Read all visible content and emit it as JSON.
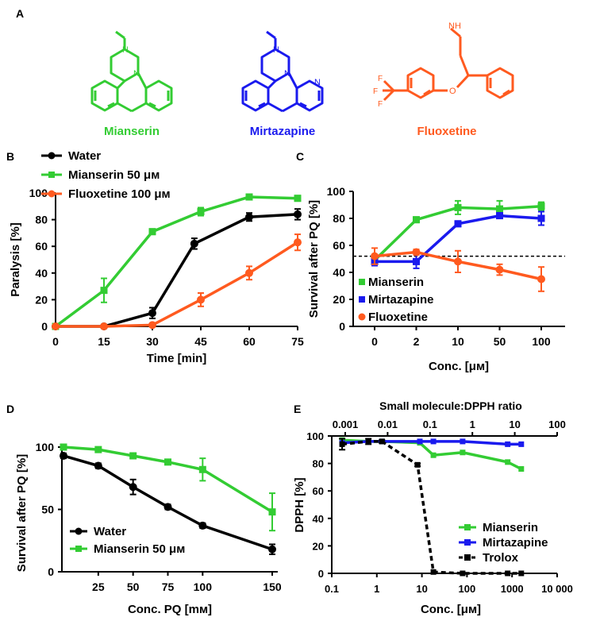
{
  "panel_letters": [
    "A",
    "B",
    "C",
    "D",
    "E"
  ],
  "structures": {
    "mianserin": {
      "name": "Mianserin",
      "color": "#33cc33"
    },
    "mirtazapine": {
      "name": "Mirtazapine",
      "color": "#1a1aee"
    },
    "fluoxetine": {
      "name": "Fluoxetine",
      "color": "#ff5a1f"
    },
    "atoms": {
      "N": "N",
      "O": "O",
      "NH": "NH",
      "F": "F"
    }
  },
  "chart_data": [
    {
      "panel": "B",
      "type": "line",
      "xlabel": "Time [min]",
      "ylabel": "Paralysis [%]",
      "xlim": [
        0,
        75
      ],
      "ylim": [
        0,
        100
      ],
      "xticks": [
        "0",
        "15",
        "30",
        "45",
        "60",
        "75"
      ],
      "yticks": [
        "0",
        "20",
        "40",
        "60",
        "80",
        "100"
      ],
      "legend_position": "top-left",
      "series": [
        {
          "name": "Water",
          "color": "#000000",
          "marker": "circle",
          "x": [
            0,
            15,
            30,
            43,
            60,
            75
          ],
          "y": [
            0,
            0,
            10,
            62,
            82,
            84
          ],
          "err": [
            0,
            0,
            4,
            4,
            3,
            4
          ]
        },
        {
          "name": "Mianserin 50 μм",
          "color": "#33cc33",
          "marker": "square",
          "x": [
            0,
            15,
            30,
            45,
            60,
            75
          ],
          "y": [
            0,
            27,
            71,
            86,
            97,
            96
          ],
          "err": [
            0,
            9,
            2,
            3,
            2,
            2
          ]
        },
        {
          "name": "Fluoxetine 100 μм",
          "color": "#ff5a1f",
          "marker": "circle",
          "x": [
            0,
            15,
            30,
            45,
            60,
            75
          ],
          "y": [
            0,
            0,
            1,
            20,
            40,
            63
          ],
          "err": [
            0,
            0,
            1,
            5,
            5,
            6
          ]
        }
      ]
    },
    {
      "panel": "C",
      "type": "line",
      "xlabel": "Conc. [μм]",
      "ylabel": "Survival after PQ  [%]",
      "categories": [
        "0",
        "2",
        "10",
        "50",
        "100"
      ],
      "ylim": [
        0,
        100
      ],
      "yticks": [
        "0",
        "20",
        "40",
        "60",
        "80",
        "100"
      ],
      "reference_line": 52,
      "legend_position": "bottom-left",
      "series": [
        {
          "name": "Mianserin",
          "color": "#33cc33",
          "marker": "square",
          "y": [
            49,
            79,
            88,
            87,
            89
          ],
          "err": [
            3,
            2,
            5,
            6,
            3
          ]
        },
        {
          "name": "Mirtazapine",
          "color": "#1a1aee",
          "marker": "square",
          "y": [
            48,
            48,
            76,
            82,
            80
          ],
          "err": [
            3,
            5,
            2,
            2,
            5
          ]
        },
        {
          "name": "Fluoxetine",
          "color": "#ff5a1f",
          "marker": "circle",
          "y": [
            52,
            55,
            48,
            42,
            35
          ],
          "err": [
            6,
            2,
            8,
            4,
            9
          ]
        }
      ]
    },
    {
      "panel": "D",
      "type": "line",
      "xlabel": "Conc. PQ [mм]",
      "ylabel": "Survival after PQ  [%]",
      "xlim": [
        0,
        150
      ],
      "ylim": [
        0,
        100
      ],
      "xticks": [
        "25",
        "50",
        "75",
        "100",
        "150"
      ],
      "yticks": [
        "0",
        "50",
        "100"
      ],
      "legend_position": "bottom-left",
      "series": [
        {
          "name": "Water",
          "color": "#000000",
          "marker": "circle",
          "x": [
            0,
            25,
            50,
            75,
            100,
            150
          ],
          "y": [
            93,
            85,
            68,
            52,
            37,
            18
          ],
          "err": [
            2,
            2,
            6,
            2,
            2,
            4
          ]
        },
        {
          "name": "Mianserin 50 μм",
          "color": "#33cc33",
          "marker": "square",
          "x": [
            0,
            25,
            50,
            75,
            100,
            150
          ],
          "y": [
            100,
            98,
            93,
            88,
            82,
            48
          ],
          "err": [
            1,
            1,
            1,
            2,
            9,
            15
          ]
        }
      ]
    },
    {
      "panel": "E",
      "type": "line",
      "title": "Small molecule:DPPH ratio",
      "xlabel": "Conc. [μм]",
      "ylabel": "DPPH [%]",
      "xscale": "log",
      "xlim": [
        0.1,
        10000
      ],
      "ylim": [
        0,
        100
      ],
      "xticks": [
        "0.1",
        "1",
        "10",
        "100",
        "1000",
        "10 000"
      ],
      "top_xticks": [
        "0.001",
        "0.01",
        "0.1",
        "1",
        "10",
        "100"
      ],
      "yticks": [
        "0",
        "20",
        "40",
        "60",
        "80",
        "100"
      ],
      "legend_position": "bottom-right",
      "series": [
        {
          "name": "Mianserin",
          "color": "#33cc33",
          "marker": "square",
          "dash": false,
          "x": [
            0.17,
            0.65,
            1.3,
            9,
            18,
            80,
            800,
            1600
          ],
          "y": [
            97,
            96,
            96,
            95,
            86,
            88,
            81,
            76
          ]
        },
        {
          "name": "Mirtazapine",
          "color": "#1a1aee",
          "marker": "square",
          "dash": false,
          "x": [
            0.17,
            0.65,
            1.3,
            9,
            18,
            80,
            800,
            1600
          ],
          "y": [
            95,
            96,
            96,
            96,
            96,
            96,
            94,
            94
          ]
        },
        {
          "name": "Trolox",
          "color": "#000000",
          "marker": "square",
          "dash": true,
          "x": [
            0.17,
            0.65,
            1.3,
            8,
            18,
            80,
            800,
            1600
          ],
          "y": [
            94,
            96,
            96,
            79,
            1,
            0,
            0,
            0
          ],
          "err": [
            4,
            2,
            1,
            1,
            0,
            0,
            0,
            0
          ]
        }
      ]
    }
  ]
}
